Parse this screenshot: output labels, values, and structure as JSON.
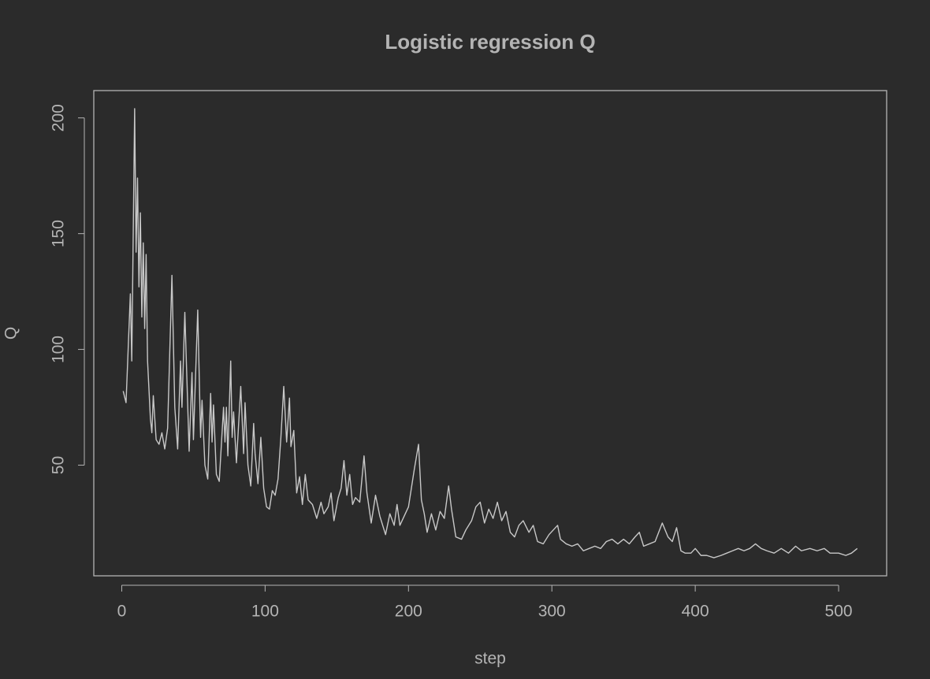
{
  "chart_data": {
    "type": "line",
    "title": "Logistic regression Q",
    "x_label": "step",
    "y_label": "Q",
    "x": [
      1,
      3,
      6,
      7,
      9,
      10,
      11,
      12,
      13,
      14,
      15,
      16,
      17,
      18,
      20,
      21,
      22,
      24,
      26,
      28,
      30,
      32,
      35,
      37,
      39,
      41,
      42,
      44,
      47,
      49,
      50,
      53,
      55,
      56,
      58,
      60,
      62,
      63,
      64,
      66,
      68,
      71,
      72,
      73,
      74,
      76,
      77,
      78,
      80,
      83,
      85,
      86,
      88,
      90,
      92,
      93,
      95,
      97,
      99,
      101,
      103,
      105,
      107,
      109,
      111,
      113,
      115,
      117,
      118,
      120,
      122,
      124,
      126,
      128,
      130,
      133,
      136,
      139,
      141,
      144,
      146,
      148,
      151,
      153,
      155,
      157,
      159,
      161,
      163,
      166,
      169,
      171,
      174,
      177,
      180,
      184,
      187,
      190,
      192,
      194,
      197,
      200,
      204,
      207,
      209,
      211,
      213,
      216,
      219,
      222,
      225,
      228,
      230,
      233,
      237,
      240,
      244,
      247,
      250,
      253,
      256,
      259,
      262,
      265,
      268,
      271,
      274,
      277,
      280,
      284,
      287,
      290,
      294,
      298,
      301,
      304,
      306,
      310,
      314,
      318,
      322,
      326,
      330,
      334,
      338,
      342,
      346,
      350,
      354,
      358,
      361,
      364,
      368,
      372,
      377,
      381,
      384,
      387,
      390,
      393,
      397,
      400,
      404,
      408,
      413,
      418,
      422,
      426,
      430,
      434,
      438,
      442,
      446,
      450,
      455,
      460,
      465,
      470,
      474,
      480,
      485,
      490,
      494,
      500,
      505,
      509,
      513
    ],
    "series": [
      {
        "name": "Q",
        "color": "#c8c8c8",
        "values": [
          82,
          77,
          124,
          95,
          204,
          142,
          174,
          127,
          159,
          114,
          146,
          109,
          141,
          95,
          70,
          64,
          80,
          61,
          59,
          64,
          57,
          66,
          132,
          75,
          57,
          95,
          75,
          116,
          56,
          90,
          61,
          117,
          62,
          78,
          50,
          44,
          81,
          60,
          76,
          46,
          43,
          75,
          60,
          75,
          54,
          95,
          62,
          73,
          51,
          84,
          55,
          77,
          50,
          41,
          68,
          55,
          42,
          62,
          40,
          32,
          31,
          39,
          37,
          44,
          62,
          84,
          60,
          79,
          58,
          65,
          38,
          45,
          33,
          46,
          35,
          33,
          27,
          34,
          29,
          32,
          38,
          26,
          36,
          40,
          52,
          37,
          46,
          33,
          36,
          34,
          54,
          38,
          25,
          37,
          28,
          20,
          29,
          24,
          33,
          24,
          28,
          32,
          48,
          59,
          35,
          29,
          21,
          29,
          22,
          30,
          27,
          41,
          31,
          19,
          18,
          22,
          26,
          32,
          34,
          25,
          31,
          27,
          34,
          26,
          30,
          21,
          19,
          24,
          26,
          21,
          24,
          17,
          16,
          20,
          22,
          24,
          18,
          16,
          15,
          16,
          13,
          14,
          15,
          14,
          17,
          18,
          16,
          18,
          16,
          19,
          21,
          15,
          16,
          17,
          25,
          19,
          17,
          23,
          13,
          12,
          12,
          14,
          11,
          11,
          10,
          11,
          12,
          13,
          14,
          13,
          14,
          16,
          14,
          13,
          12,
          14,
          12,
          15,
          13,
          14,
          13,
          14,
          12,
          12,
          11,
          12,
          14
        ]
      }
    ],
    "xlim": [
      -19.5,
      533.5
    ],
    "ylim": [
      2.2,
      211.8
    ],
    "xticks": [
      0,
      100,
      200,
      300,
      400,
      500
    ],
    "yticks": [
      50,
      100,
      150,
      200
    ],
    "grid": false
  }
}
